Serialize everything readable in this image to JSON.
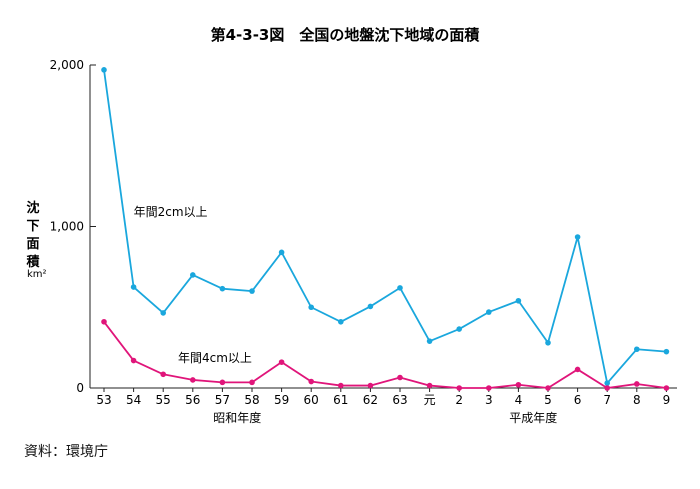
{
  "chart_data": {
    "type": "line",
    "title": "第4-3-3図　全国の地盤沈下地域の面積",
    "ylabel": [
      "沈",
      "下",
      "面",
      "積"
    ],
    "yunit": "km²",
    "ylim": [
      0,
      2000
    ],
    "yticks": [
      "0",
      "1,000",
      "2,000"
    ],
    "yticks_values": [
      0,
      1000,
      2000
    ],
    "categories": [
      "53",
      "54",
      "55",
      "56",
      "57",
      "58",
      "59",
      "60",
      "61",
      "62",
      "63",
      "元",
      "2",
      "3",
      "4",
      "5",
      "6",
      "7",
      "8",
      "9"
    ],
    "era_labels": [
      {
        "text": "昭和年度",
        "center_index": 4.5
      },
      {
        "text": "平成年度",
        "center_index": 14.5
      }
    ],
    "series": [
      {
        "name": "年間2cm以上",
        "color": "#1aa7dd",
        "label_at_index": 1,
        "label_value": 1065,
        "values": [
          1970,
          625,
          465,
          700,
          615,
          600,
          840,
          500,
          410,
          505,
          620,
          290,
          365,
          470,
          540,
          280,
          935,
          30,
          240,
          225
        ]
      },
      {
        "name": "年間4cm以上",
        "color": "#e0157a",
        "label_at_index": 2.5,
        "label_value": 160,
        "values": [
          410,
          170,
          85,
          50,
          35,
          35,
          160,
          40,
          15,
          15,
          65,
          15,
          0,
          0,
          20,
          0,
          115,
          0,
          25,
          0
        ]
      }
    ]
  },
  "source": "資料：環境庁"
}
